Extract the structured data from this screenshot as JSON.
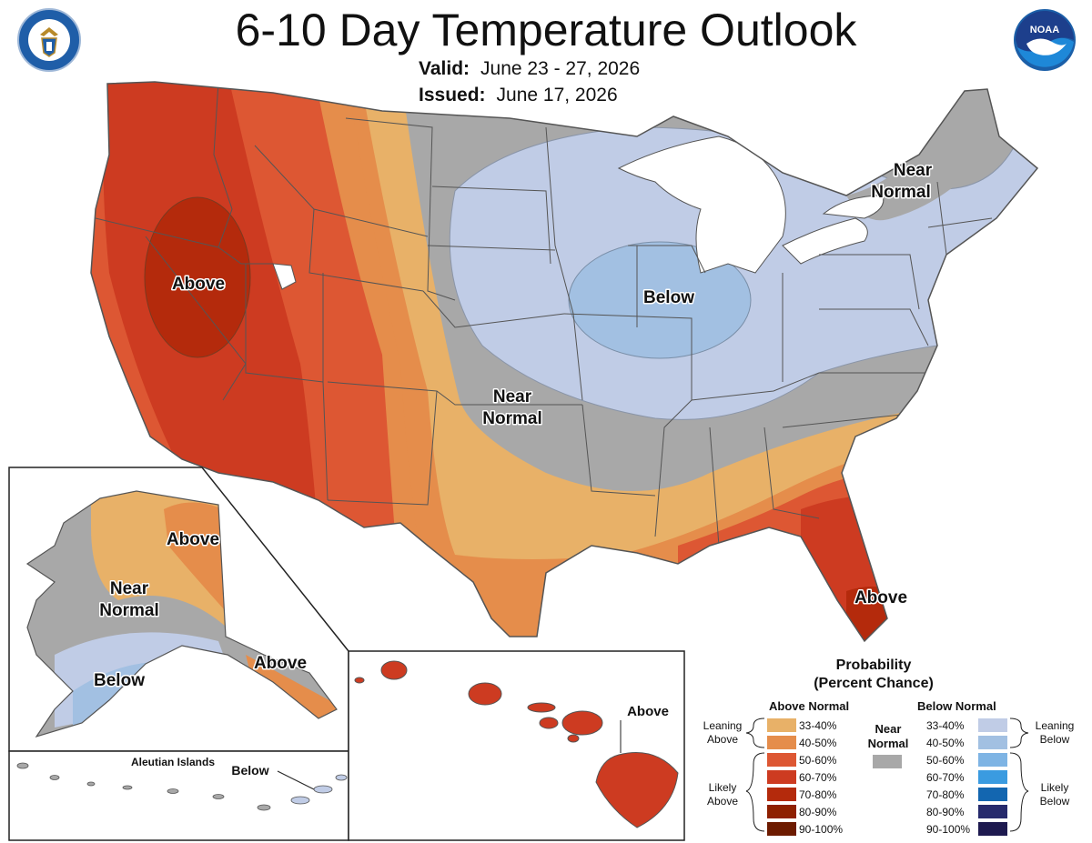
{
  "header": {
    "title": "6-10 Day Temperature Outlook",
    "valid_label": "Valid:",
    "valid_value": "June 23 - 27, 2026",
    "issued_label": "Issued:",
    "issued_value": "June 17, 2026",
    "left_seal_text": "DEPARTMENT OF COMMERCE · UNITED STATES OF AMERICA",
    "right_logo_text": "NOAA"
  },
  "map_labels": {
    "west_above": "Above",
    "midwest_below": "Below",
    "northeast_near": [
      "Near",
      "Normal"
    ],
    "central_near": [
      "Near",
      "Normal"
    ],
    "florida_above": "Above",
    "alaska_above_north": "Above",
    "alaska_near": [
      "Near",
      "Normal"
    ],
    "alaska_below": "Below",
    "alaska_above_southeast": "Above",
    "aleutian_title": "Aleutian Islands",
    "aleutian_below": "Below",
    "hawaii_above": "Above"
  },
  "legend": {
    "title_line1": "Probability",
    "title_line2": "(Percent Chance)",
    "above_header": "Above Normal",
    "below_header": "Below Normal",
    "near_label": [
      "Near",
      "Normal"
    ],
    "near_color": "#a8a8a8",
    "leaning_above": [
      "Leaning",
      "Above"
    ],
    "likely_above": [
      "Likely",
      "Above"
    ],
    "leaning_below": [
      "Leaning",
      "Below"
    ],
    "likely_below": [
      "Likely",
      "Below"
    ],
    "above": [
      {
        "range": "33-40%",
        "color": "#e8b168"
      },
      {
        "range": "40-50%",
        "color": "#e58d4b"
      },
      {
        "range": "50-60%",
        "color": "#dd5733"
      },
      {
        "range": "60-70%",
        "color": "#cd3b21"
      },
      {
        "range": "70-80%",
        "color": "#b42a0c"
      },
      {
        "range": "80-90%",
        "color": "#8e2000"
      },
      {
        "range": "90-100%",
        "color": "#6d1b00"
      }
    ],
    "below": [
      {
        "range": "33-40%",
        "color": "#c0cce6"
      },
      {
        "range": "40-50%",
        "color": "#a2c0e2"
      },
      {
        "range": "50-60%",
        "color": "#7eb4e4"
      },
      {
        "range": "60-70%",
        "color": "#3a9be0"
      },
      {
        "range": "70-80%",
        "color": "#1366b0"
      },
      {
        "range": "80-90%",
        "color": "#262a6c"
      },
      {
        "range": "90-100%",
        "color": "#1e1a50"
      }
    ]
  }
}
